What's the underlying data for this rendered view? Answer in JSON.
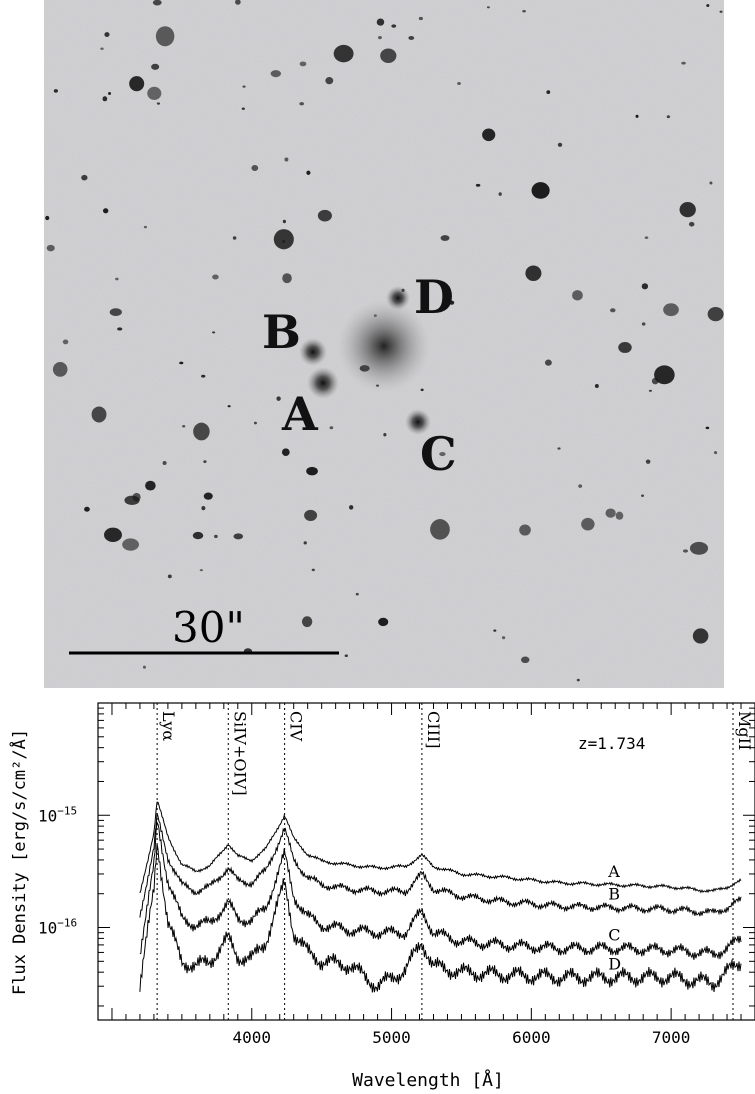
{
  "image_panel": {
    "labels": [
      {
        "id": "A",
        "text": "A"
      },
      {
        "id": "B",
        "text": "B"
      },
      {
        "id": "C",
        "text": "C"
      },
      {
        "id": "D",
        "text": "D"
      }
    ],
    "scale_bar_text": "30\""
  },
  "chart_data": {
    "type": "line",
    "title": "",
    "xlabel": "Wavelength [Å]",
    "ylabel": "Flux Density [erg/s/cm²/Å]",
    "y_scale": "log",
    "xlim": [
      2900,
      7600
    ],
    "ylim": [
      1.5e-17,
      1e-14
    ],
    "x_ticks": [
      4000,
      5000,
      6000,
      7000
    ],
    "x_tick_labels": [
      "4000",
      "5000",
      "6000",
      "7000"
    ],
    "y_tick_labels": [
      {
        "value": 1e-15,
        "base": "10",
        "exp": "−15"
      },
      {
        "value": 1e-16,
        "base": "10",
        "exp": "−16"
      }
    ],
    "annotation": "z=1.734",
    "emission_lines": [
      {
        "name": "Lyα",
        "wavelength": 3323
      },
      {
        "name": "SiIV+OIV]",
        "wavelength": 3832
      },
      {
        "name": "CIV",
        "wavelength": 4235
      },
      {
        "name": "CIII]",
        "wavelength": 5217
      },
      {
        "name": "MgII",
        "wavelength": 7650
      }
    ],
    "series": [
      {
        "name": "A",
        "x": [
          3200,
          3300,
          3323,
          3400,
          3500,
          3600,
          3700,
          3832,
          3900,
          4000,
          4100,
          4235,
          4300,
          4400,
          4500,
          4700,
          4900,
          5100,
          5217,
          5300,
          5500,
          5800,
          6200,
          6600,
          7000,
          7300,
          7400,
          7500
        ],
        "y": [
          2e-16,
          7e-16,
          1.35e-15,
          6.5e-16,
          3.6e-16,
          3.2e-16,
          3.5e-16,
          5.6e-16,
          4.3e-16,
          4e-16,
          5e-16,
          1e-15,
          6.2e-16,
          4.5e-16,
          3.9e-16,
          3.6e-16,
          3.4e-16,
          3.5e-16,
          4.4e-16,
          3.5e-16,
          3e-16,
          2.8e-16,
          2.5e-16,
          2.4e-16,
          2.3e-16,
          2.1e-16,
          2.3e-16,
          2.6e-16
        ]
      },
      {
        "name": "B",
        "x": [
          3200,
          3300,
          3323,
          3400,
          3500,
          3600,
          3700,
          3832,
          3900,
          4000,
          4100,
          4235,
          4300,
          4400,
          4500,
          4700,
          4900,
          5100,
          5217,
          5300,
          5500,
          5800,
          6200,
          6600,
          7000,
          7300,
          7400,
          7500
        ],
        "y": [
          1.3e-16,
          5e-16,
          1e-15,
          4.2e-16,
          2.4e-16,
          2.1e-16,
          2.3e-16,
          3.4e-16,
          2.6e-16,
          2.5e-16,
          3.2e-16,
          7.5e-16,
          4e-16,
          2.8e-16,
          2.4e-16,
          2.2e-16,
          2.1e-16,
          2.1e-16,
          3e-16,
          2.2e-16,
          1.9e-16,
          1.7e-16,
          1.55e-16,
          1.5e-16,
          1.45e-16,
          1.35e-16,
          1.5e-16,
          1.75e-16
        ]
      },
      {
        "name": "C",
        "x": [
          3200,
          3300,
          3323,
          3400,
          3500,
          3600,
          3700,
          3832,
          3900,
          4000,
          4100,
          4235,
          4300,
          4400,
          4500,
          4700,
          4900,
          5100,
          5217,
          5300,
          5500,
          5800,
          6200,
          6600,
          7000,
          7300,
          7400,
          7500
        ],
        "y": [
          6e-17,
          3.5e-16,
          9e-16,
          2.6e-16,
          1.2e-16,
          1.05e-16,
          1.1e-16,
          1.65e-16,
          1.2e-16,
          1.15e-16,
          1.5e-16,
          4.5e-16,
          1.9e-16,
          1.25e-16,
          1.05e-16,
          9.5e-17,
          9e-17,
          9e-17,
          1.4e-16,
          9e-17,
          7.5e-17,
          7e-17,
          6.5e-17,
          6.5e-17,
          6.3e-17,
          5.8e-17,
          6.5e-17,
          8e-17
        ]
      },
      {
        "name": "D",
        "x": [
          3200,
          3300,
          3323,
          3400,
          3500,
          3600,
          3700,
          3832,
          3900,
          4000,
          4100,
          4235,
          4300,
          4400,
          4500,
          4700,
          4900,
          5100,
          5217,
          5300,
          5500,
          5800,
          6200,
          6600,
          7000,
          7300,
          7400,
          7500
        ],
        "y": [
          3e-17,
          2.2e-16,
          6e-16,
          1.1e-16,
          5e-17,
          4.5e-17,
          5e-17,
          8e-17,
          5.5e-17,
          5.2e-17,
          7.5e-17,
          2.5e-16,
          9e-17,
          6e-17,
          5e-17,
          4.6e-17,
          3e-17,
          4.2e-17,
          7.5e-17,
          4.5e-17,
          4e-17,
          3.8e-17,
          3.6e-17,
          3.6e-17,
          3.6e-17,
          3.2e-17,
          4e-17,
          5e-17
        ]
      }
    ]
  }
}
